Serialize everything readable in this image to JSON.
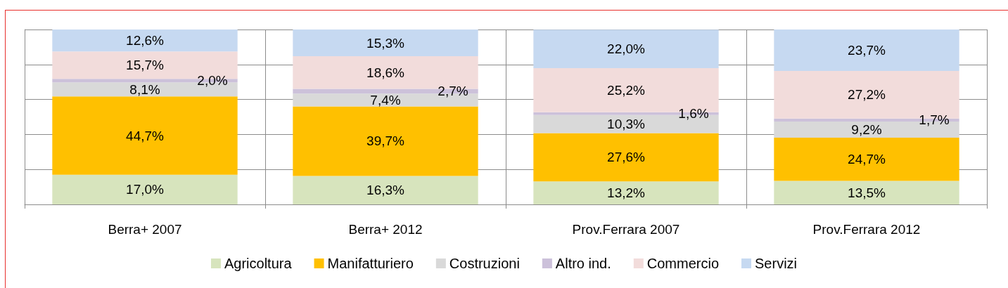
{
  "chart_data": {
    "type": "bar",
    "stacked": true,
    "categories": [
      "Berra+ 2007",
      "Berra+ 2012",
      "Prov.Ferrara 2007",
      "Prov.Ferrara 2012"
    ],
    "series": [
      {
        "name": "Agricoltura",
        "color": "#d7e4bd",
        "values": [
          17.0,
          16.3,
          13.2,
          13.5
        ],
        "value_labels": [
          "17,0%",
          "16,3%",
          "13,2%",
          "13,5%"
        ]
      },
      {
        "name": "Manifatturiero",
        "color": "#ffc000",
        "values": [
          44.7,
          39.7,
          27.6,
          24.7
        ],
        "value_labels": [
          "44,7%",
          "39,7%",
          "27,6%",
          "24,7%"
        ]
      },
      {
        "name": "Costruzioni",
        "color": "#d9d9d9",
        "values": [
          8.1,
          7.4,
          10.3,
          9.2
        ],
        "value_labels": [
          "8,1%",
          "7,4%",
          "10,3%",
          "9,2%"
        ]
      },
      {
        "name": "Altro ind.",
        "color": "#ccc1da",
        "values": [
          2.0,
          2.7,
          1.6,
          1.7
        ],
        "value_labels": [
          "2,0%",
          "2,7%",
          "1,6%",
          "1,7%"
        ]
      },
      {
        "name": "Commercio",
        "color": "#f2dcdb",
        "values": [
          15.7,
          18.6,
          25.2,
          27.2
        ],
        "value_labels": [
          "15,7%",
          "18,6%",
          "25,2%",
          "27,2%"
        ]
      },
      {
        "name": "Servizi",
        "color": "#c6d9f1",
        "values": [
          12.6,
          15.3,
          22.0,
          23.7
        ],
        "value_labels": [
          "12,6%",
          "15,3%",
          "22,0%",
          "23,7%"
        ]
      }
    ],
    "ylim": [
      0,
      100
    ],
    "yticks": [
      {
        "value": 0,
        "label": null
      },
      {
        "value": 20,
        "label": null
      },
      {
        "value": 40,
        "label": null
      },
      {
        "value": 60,
        "label": null
      },
      {
        "value": 80,
        "label": null
      },
      {
        "value": 100,
        "label": null
      }
    ],
    "tick_labels": "x",
    "grid": true,
    "legend": "bottom"
  }
}
